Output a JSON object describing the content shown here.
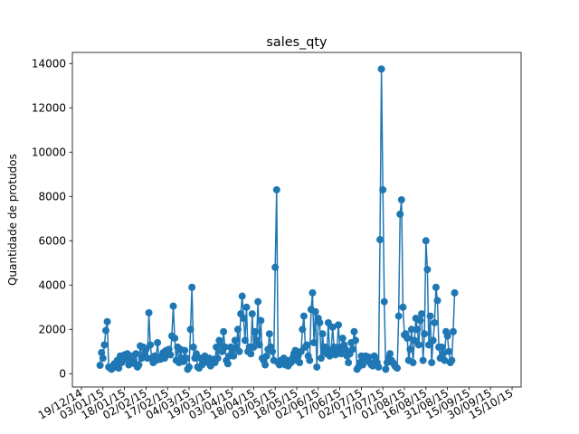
{
  "chart_data": {
    "type": "line",
    "title": "sales_qty",
    "xlabel": "",
    "ylabel": "Quantidade de protudos",
    "x_start": "2015-01-01",
    "x_end": "2015-10-14",
    "x_step_days": 1,
    "ylim": [
      -600,
      14500
    ],
    "yticks": [
      0,
      2000,
      4000,
      6000,
      8000,
      10000,
      12000,
      14000
    ],
    "xticks": [
      {
        "date": "2014-12-19",
        "label": "19/12/14"
      },
      {
        "date": "2015-01-03",
        "label": "03/01/15"
      },
      {
        "date": "2015-01-18",
        "label": "18/01/15"
      },
      {
        "date": "2015-02-02",
        "label": "02/02/15"
      },
      {
        "date": "2015-02-17",
        "label": "17/02/15"
      },
      {
        "date": "2015-03-04",
        "label": "04/03/15"
      },
      {
        "date": "2015-03-19",
        "label": "19/03/15"
      },
      {
        "date": "2015-04-03",
        "label": "03/04/15"
      },
      {
        "date": "2015-04-18",
        "label": "18/04/15"
      },
      {
        "date": "2015-05-03",
        "label": "03/05/15"
      },
      {
        "date": "2015-05-18",
        "label": "18/05/15"
      },
      {
        "date": "2015-06-02",
        "label": "02/06/15"
      },
      {
        "date": "2015-06-17",
        "label": "17/06/15"
      },
      {
        "date": "2015-07-02",
        "label": "02/07/15"
      },
      {
        "date": "2015-07-17",
        "label": "17/07/15"
      },
      {
        "date": "2015-08-01",
        "label": "01/08/15"
      },
      {
        "date": "2015-08-16",
        "label": "16/08/15"
      },
      {
        "date": "2015-08-31",
        "label": "31/08/15"
      },
      {
        "date": "2015-09-15",
        "label": "15/09/15"
      },
      {
        "date": "2015-09-30",
        "label": "30/09/15"
      },
      {
        "date": "2015-10-15",
        "label": "15/10/15"
      }
    ],
    "grid": false,
    "color": "#1f77b4",
    "series": [
      {
        "values": [
          380,
          950,
          700,
          1300,
          1950,
          2350,
          300,
          250,
          200,
          350,
          450,
          300,
          600,
          250,
          800,
          500,
          700,
          850,
          650,
          900,
          400,
          700,
          800,
          650,
          450,
          900,
          300,
          400,
          1250,
          700,
          1200,
          800,
          1100,
          700,
          2750,
          1300,
          700,
          500,
          800,
          600,
          1400,
          700,
          650,
          800,
          950,
          700,
          1050,
          900,
          1100,
          850,
          1700,
          3050,
          1600,
          600,
          1200,
          500,
          1100,
          700,
          550,
          1050,
          700,
          200,
          300,
          2000,
          3900,
          1200,
          700,
          900,
          300,
          250,
          700,
          400,
          600,
          800,
          550,
          500,
          700,
          350,
          600,
          650,
          500,
          1200,
          700,
          1500,
          1300,
          1000,
          1900,
          1200,
          600,
          450,
          800,
          1200,
          1000,
          800,
          1500,
          1200,
          2000,
          1000,
          2700,
          3500,
          2500,
          1500,
          3000,
          1000,
          1200,
          900,
          2700,
          1200,
          1900,
          1500,
          3250,
          1300,
          2400,
          700,
          600,
          400,
          800,
          1100,
          1800,
          1200,
          1000,
          600,
          4800,
          8300,
          500,
          400,
          600,
          500,
          700,
          400,
          600,
          350,
          500,
          500,
          700,
          900,
          1050,
          600,
          800,
          500,
          1000,
          2000,
          2600,
          1200,
          1300,
          800,
          600,
          2900,
          3650,
          1400,
          2800,
          300,
          2500,
          2300,
          700,
          1800,
          1000,
          1200,
          900,
          2300,
          800,
          1050,
          2100,
          1200,
          850,
          1000,
          2200,
          1200,
          900,
          1600,
          1300,
          1100,
          800,
          500,
          900,
          1400,
          1100,
          1900,
          1500,
          200,
          300,
          500,
          800,
          400,
          700,
          800,
          600,
          750,
          500,
          400,
          350,
          800,
          700,
          500,
          300,
          6050,
          13750,
          8300,
          3250,
          200,
          500,
          700,
          900,
          600,
          500,
          400,
          300,
          250,
          2600,
          7200,
          7850,
          3000,
          1750,
          1800,
          1600,
          600,
          1100,
          2000,
          500,
          1500,
          2500,
          2000,
          1300,
          2400,
          2700,
          600,
          1800,
          6000,
          4700,
          1300,
          2600,
          500,
          1500,
          2300,
          3900,
          3300,
          1200,
          700,
          1200,
          900,
          600,
          1900,
          1700,
          1000,
          500,
          600,
          1900,
          3650
        ]
      }
    ]
  }
}
